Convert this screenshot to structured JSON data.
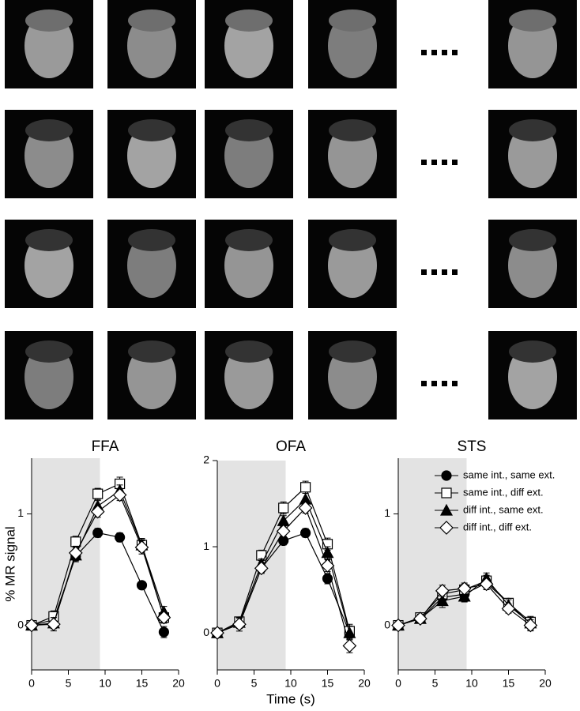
{
  "chart_data": [
    {
      "type": "line",
      "title": "FFA",
      "ylabel": "% MR signal",
      "x": [
        0,
        3,
        6,
        9,
        12,
        15,
        18
      ],
      "xlim": [
        0,
        20
      ],
      "xticks": [
        0,
        5,
        10,
        15,
        20
      ],
      "ylim": [
        -0.4,
        1.5
      ],
      "yticks": [
        0,
        1
      ],
      "shade": [
        0,
        9.3
      ],
      "series": [
        {
          "marker": "circle",
          "color": "#000000",
          "values": [
            0,
            0.05,
            0.62,
            0.83,
            0.79,
            0.36,
            -0.06
          ],
          "errors": [
            0.02,
            0.04,
            0.05,
            0.04,
            0.04,
            0.03,
            0.05
          ]
        },
        {
          "marker": "square",
          "color": "#ffffff",
          "values": [
            0,
            0.08,
            0.75,
            1.18,
            1.27,
            0.72,
            0.07
          ],
          "errors": [
            0.02,
            0.05,
            0.05,
            0.05,
            0.06,
            0.05,
            0.05
          ]
        },
        {
          "marker": "triangle",
          "color": "#000000",
          "values": [
            0,
            0.02,
            0.63,
            1.07,
            1.21,
            0.72,
            0.12
          ],
          "errors": [
            0.02,
            0.05,
            0.05,
            0.05,
            0.05,
            0.06,
            0.05
          ]
        },
        {
          "marker": "diamond",
          "color": "#ffffff",
          "values": [
            0,
            0.01,
            0.65,
            1.02,
            1.17,
            0.7,
            0.07
          ],
          "errors": [
            0.02,
            0.06,
            0.06,
            0.05,
            0.05,
            0.06,
            0.05
          ]
        }
      ]
    },
    {
      "type": "line",
      "title": "OFA",
      "xlabel": "Time (s)",
      "x": [
        0,
        3,
        6,
        9,
        12,
        15,
        18
      ],
      "xlim": [
        0,
        20
      ],
      "xticks": [
        0,
        5,
        10,
        15,
        20
      ],
      "ylim": [
        -0.43,
        2
      ],
      "yticks": [
        0,
        1,
        2
      ],
      "shade": [
        0,
        9.3
      ],
      "series": [
        {
          "marker": "circle",
          "color": "#000000",
          "values": [
            0,
            0.1,
            0.75,
            1.07,
            1.16,
            0.63,
            0.0
          ],
          "errors": [
            0.02,
            0.05,
            0.05,
            0.05,
            0.05,
            0.06,
            0.08
          ]
        },
        {
          "marker": "square",
          "color": "#ffffff",
          "values": [
            0,
            0.13,
            0.9,
            1.45,
            1.69,
            1.03,
            0.02
          ],
          "errors": [
            0.02,
            0.05,
            0.06,
            0.07,
            0.07,
            0.07,
            0.08
          ]
        },
        {
          "marker": "triangle",
          "color": "#000000",
          "values": [
            0,
            0.12,
            0.8,
            1.3,
            1.55,
            0.93,
            0.0
          ],
          "errors": [
            0.02,
            0.05,
            0.06,
            0.06,
            0.07,
            0.07,
            0.08
          ]
        },
        {
          "marker": "diamond",
          "color": "#ffffff",
          "values": [
            0,
            0.1,
            0.75,
            1.18,
            1.45,
            0.78,
            -0.15
          ],
          "errors": [
            0.02,
            0.08,
            0.06,
            0.06,
            0.06,
            0.07,
            0.08
          ]
        }
      ]
    },
    {
      "type": "line",
      "title": "STS",
      "x": [
        0,
        3,
        6,
        9,
        12,
        15,
        18
      ],
      "xlim": [
        0,
        20
      ],
      "xticks": [
        0,
        5,
        10,
        15,
        20
      ],
      "ylim": [
        -0.4,
        1.5
      ],
      "yticks": [
        0,
        1
      ],
      "shade": [
        0,
        9.3
      ],
      "legend": "upper right",
      "series": [
        {
          "name": "same int., same ext.",
          "marker": "circle",
          "color": "#000000",
          "values": [
            0,
            0.06,
            0.25,
            0.28,
            0.38,
            0.2,
            0.01
          ],
          "errors": [
            0.02,
            0.04,
            0.05,
            0.05,
            0.05,
            0.04,
            0.05
          ]
        },
        {
          "name": "same int., diff ext.",
          "marker": "square",
          "color": "#ffffff",
          "values": [
            0,
            0.07,
            0.28,
            0.32,
            0.4,
            0.2,
            0.03
          ],
          "errors": [
            0.02,
            0.04,
            0.05,
            0.05,
            0.05,
            0.04,
            0.05
          ]
        },
        {
          "name": "diff int., same ext.",
          "marker": "triangle",
          "color": "#000000",
          "values": [
            0,
            0.06,
            0.22,
            0.26,
            0.42,
            0.18,
            0.02
          ],
          "errors": [
            0.02,
            0.04,
            0.06,
            0.05,
            0.05,
            0.05,
            0.05
          ]
        },
        {
          "name": "diff int., diff ext.",
          "marker": "diamond",
          "color": "#ffffff",
          "values": [
            0,
            0.06,
            0.31,
            0.33,
            0.37,
            0.15,
            0.0
          ],
          "errors": [
            0.02,
            0.04,
            0.05,
            0.05,
            0.05,
            0.04,
            0.05
          ]
        }
      ]
    }
  ]
}
